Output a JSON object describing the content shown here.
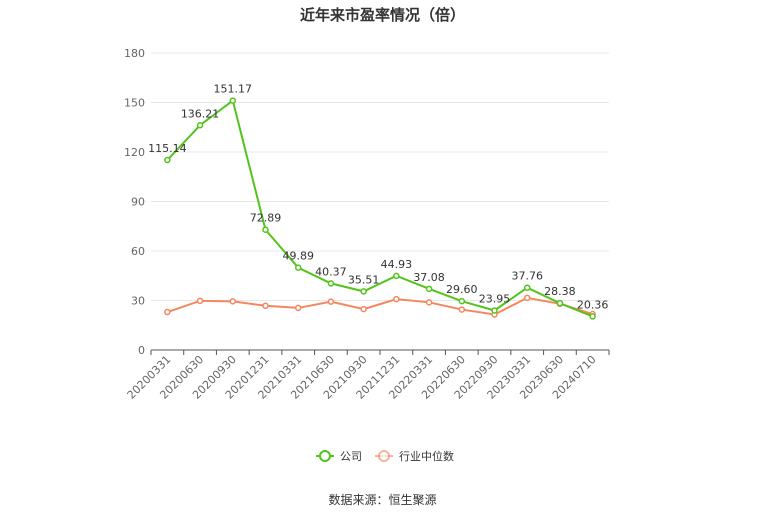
{
  "chart_data": {
    "type": "line",
    "title": "近年来市盈率情况（倍）",
    "categories": [
      "20200331",
      "20200630",
      "20200930",
      "20201231",
      "20210331",
      "20210630",
      "20210930",
      "20211231",
      "20220331",
      "20220630",
      "20220930",
      "20230331",
      "20230630",
      "20240710"
    ],
    "series": [
      {
        "name": "公司",
        "color": "#52c41a",
        "values": [
          115.14,
          136.21,
          151.17,
          72.89,
          49.89,
          40.37,
          35.51,
          44.93,
          37.08,
          29.6,
          23.95,
          37.76,
          28.38,
          20.36
        ],
        "labels": [
          "115.14",
          "136.21",
          "151.17",
          "72.89",
          "49.89",
          "40.37",
          "35.51",
          "44.93",
          "37.08",
          "29.60",
          "23.95",
          "37.76",
          "28.38",
          "20.36"
        ]
      },
      {
        "name": "行业中位数",
        "color": "#f5875f",
        "values": [
          23.0,
          29.8,
          29.5,
          26.8,
          25.5,
          29.3,
          24.8,
          30.8,
          28.9,
          24.5,
          21.5,
          31.6,
          28.0,
          21.8
        ]
      }
    ],
    "ylim": [
      0,
      180
    ],
    "yticks": [
      "0",
      "30",
      "60",
      "90",
      "120",
      "150",
      "180"
    ],
    "grid": true,
    "legend_position": "bottom",
    "source": "数据来源：恒生聚源"
  }
}
